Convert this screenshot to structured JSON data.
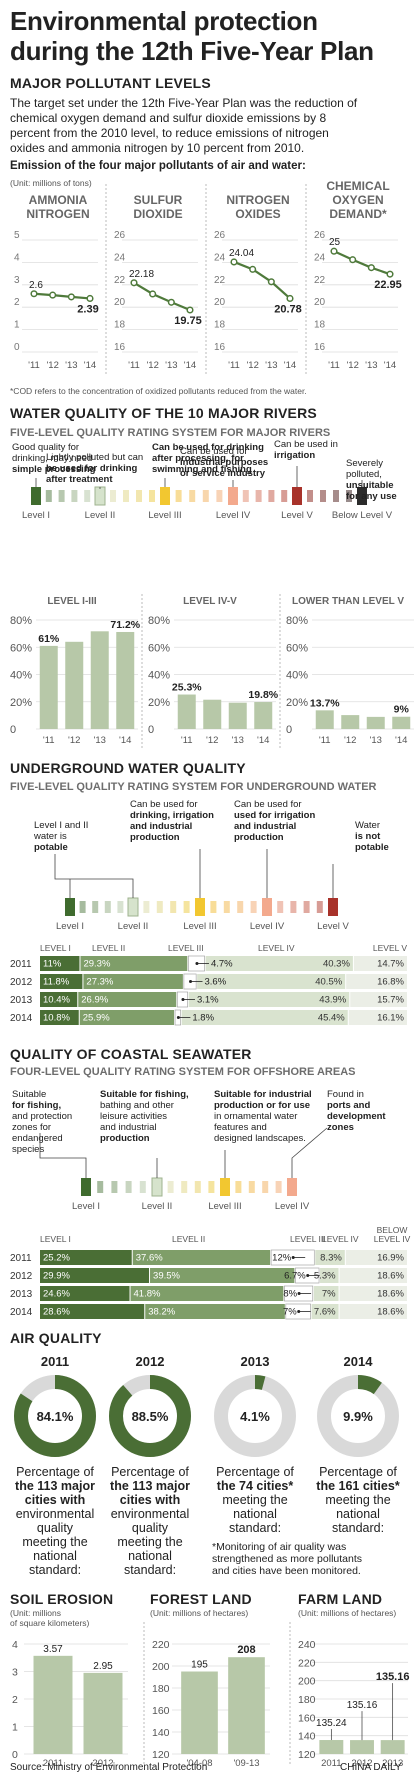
{
  "title_line1": "Environmental protection",
  "title_line2": "during the 12th Five-Year Plan",
  "pollutants": {
    "heading": "MAJOR POLLUTANT LEVELS",
    "intro": [
      "The target set under the 12th Five-Year Plan was the reduction of",
      "chemical oxygen demand and sulfur dioxide emissions by 8",
      "percent from the 2010 level, to reduce emissions of nitrogen",
      "oxides and ammonia nitrogen by 10 percent from 2010."
    ],
    "chart_title": "Emission of the four major pollutants of air and water:",
    "unit": "(Unit: millions of tons)",
    "footnote": "*COD refers to the concentration of oxidized pollutants reduced from the water."
  },
  "rivers": {
    "heading": "WATER QUALITY OF THE 10 MAJOR RIVERS",
    "scale_title": "FIVE-LEVEL QUALITY RATING SYSTEM FOR MAJOR RIVERS",
    "annotations": [
      {
        "lines": [
          "Good quality for",
          "drinking, may need",
          "simple processing"
        ]
      },
      {
        "lines": [
          "Lightly polluted but can",
          "be used for drinking",
          "after treatment"
        ]
      },
      {
        "lines": [
          "Can be used for drinking",
          "after processing, for",
          "swimming and fishing"
        ]
      },
      {
        "lines": [
          "Can be used for",
          "industrial purposes",
          "or service industry"
        ]
      },
      {
        "lines": [
          "Can be used in",
          "irrigation"
        ]
      },
      {
        "lines": [
          "Severely",
          "polluted,",
          "unsuitable",
          "for any use"
        ]
      }
    ],
    "levels": [
      "Level I",
      "Level II",
      "Level III",
      "Level IV",
      "Level V",
      "Below Level V"
    ]
  },
  "underground": {
    "heading": "UNDERGROUND WATER QUALITY",
    "scale_title": "FIVE-LEVEL QUALITY RATING SYSTEM FOR UNDERGROUND WATER",
    "annotations": [
      {
        "lines": [
          "Level I and II",
          "water is",
          "potable"
        ]
      },
      {
        "lines": [
          "Can be used for",
          "drinking, irrigation",
          "and industrial",
          "production"
        ]
      },
      {
        "lines": [
          "Can be used for",
          "used for irrigation",
          "and industrial",
          "production"
        ]
      },
      {
        "lines": [
          "Water",
          "is not",
          "potable"
        ]
      }
    ],
    "levels": [
      "Level I",
      "Level II",
      "Level III",
      "Level IV",
      "Level V"
    ]
  },
  "coastal": {
    "heading": "QUALITY OF COASTAL SEAWATER",
    "scale_title": "FOUR-LEVEL QUALITY RATING SYSTEM FOR OFFSHORE AREAS",
    "annotations": [
      {
        "lines": [
          "Suitable",
          "for fishing,",
          "and protection",
          "zones for",
          "endangered",
          "species"
        ]
      },
      {
        "lines": [
          "Suitable for fishing,",
          "bathing and other",
          "leisure activities",
          "and industrial",
          "production"
        ]
      },
      {
        "lines": [
          "Suitable for industrial",
          "production or for use",
          "in ornamental water",
          "features and",
          "designed landscapes."
        ]
      },
      {
        "lines": [
          "Found in",
          "ports and",
          "development",
          "zones"
        ]
      }
    ],
    "levels": [
      "Level I",
      "Level II",
      "Level III",
      "Level IV"
    ]
  },
  "air": {
    "heading": "AIR QUALITY",
    "captions": [
      [
        "Percentage of",
        "the 113 major",
        "cities with",
        "environmental",
        "quality",
        "meeting the",
        "national",
        "standard:"
      ],
      [
        "Percentage of",
        "the 113 major",
        "cities with",
        "environmental",
        "quality",
        "meeting the",
        "national",
        "standard:"
      ],
      [
        "Percentage of",
        "the 74 cities*",
        "meeting the",
        "national",
        "standard:"
      ],
      [
        "Percentage of",
        "the 161 cities*",
        "meeting the",
        "national",
        "standard:"
      ]
    ],
    "note": [
      "*Monitoring of air quality was",
      "strengthened as more pollutants",
      "and cities have been monitored."
    ]
  },
  "soil": {
    "heading": "SOIL EROSION",
    "unit": [
      "(Unit: millions",
      "of square kilometers)"
    ]
  },
  "forest": {
    "heading": "FOREST LAND",
    "unit": "(Unit: millions of hectares)"
  },
  "farm": {
    "heading": "FARM LAND",
    "unit": "(Unit: millions of hectares)"
  },
  "source": "Source: Ministry of Environmental Protection",
  "credit": "CHINA DAILY",
  "colors": {
    "dark": "#4a6e35",
    "mid": "#7f9e69",
    "light": "#b7c8a8",
    "pale": "#d9e3cf",
    "line": "#4f7a3b"
  },
  "chart_data": [
    {
      "type": "line",
      "title": "AMMONIA NITROGEN",
      "x": [
        "'11",
        "'12",
        "'13",
        "'14"
      ],
      "values": [
        2.6,
        2.54,
        2.46,
        2.39
      ],
      "labels": [
        "2.6",
        "",
        "",
        "2.39"
      ],
      "yticks": [
        0,
        1,
        2,
        3,
        4,
        5
      ],
      "ylim": [
        0,
        5
      ]
    },
    {
      "type": "line",
      "title": "SULFUR DIOXIDE",
      "x": [
        "'11",
        "'12",
        "'13",
        "'14"
      ],
      "values": [
        22.18,
        21.18,
        20.44,
        19.75
      ],
      "labels": [
        "22.18",
        "",
        "",
        "19.75"
      ],
      "yticks": [
        16,
        18,
        20,
        22,
        24,
        26
      ],
      "ylim": [
        16,
        26
      ]
    },
    {
      "type": "line",
      "title": "NITROGEN OXIDES",
      "x": [
        "'11",
        "'12",
        "'13",
        "'14"
      ],
      "values": [
        24.04,
        23.38,
        22.27,
        20.78
      ],
      "labels": [
        "24.04",
        "",
        "",
        "20.78"
      ],
      "yticks": [
        16,
        18,
        20,
        22,
        24,
        26
      ],
      "ylim": [
        16,
        26
      ]
    },
    {
      "type": "line",
      "title": "CHEMICAL OXYGEN DEMAND*",
      "x": [
        "'11",
        "'12",
        "'13",
        "'14"
      ],
      "values": [
        25,
        24.24,
        23.53,
        22.95
      ],
      "labels": [
        "25",
        "",
        "",
        "22.95"
      ],
      "yticks": [
        16,
        18,
        20,
        22,
        24,
        26
      ],
      "ylim": [
        16,
        26
      ]
    },
    {
      "type": "bar",
      "title": "LEVEL I-III",
      "x": [
        "'11",
        "'12",
        "'13",
        "'14"
      ],
      "values": [
        61,
        64,
        71.7,
        71.2
      ],
      "labels": [
        "61%",
        "",
        "",
        "71.2%"
      ],
      "yticks": [
        "0",
        "20%",
        "40%",
        "60%",
        "80%"
      ],
      "ylim": [
        0,
        80
      ]
    },
    {
      "type": "bar",
      "title": "LEVEL IV-V",
      "x": [
        "'11",
        "'12",
        "'13",
        "'14"
      ],
      "values": [
        25.3,
        21.5,
        19.3,
        19.8
      ],
      "labels": [
        "25.3%",
        "",
        "",
        "19.8%"
      ],
      "yticks": [
        "0",
        "20%",
        "40%",
        "60%",
        "80%"
      ],
      "ylim": [
        0,
        80
      ]
    },
    {
      "type": "bar",
      "title": "LOWER THAN LEVEL V",
      "x": [
        "'11",
        "'12",
        "'13",
        "'14"
      ],
      "values": [
        13.7,
        10.2,
        8.9,
        9
      ],
      "labels": [
        "13.7%",
        "",
        "",
        "9%"
      ],
      "yticks": [
        "0",
        "20%",
        "40%",
        "60%",
        "80%"
      ],
      "ylim": [
        0,
        80
      ]
    },
    {
      "type": "stacked-bar",
      "name": "underground",
      "headers": [
        "LEVEL I",
        "LEVEL II",
        "LEVEL III",
        "LEVEL IV",
        "LEVEL V"
      ],
      "rows": [
        {
          "year": "2011",
          "values": [
            11,
            29.3,
            4.7,
            40.3,
            14.7
          ],
          "labels": [
            "11%",
            "29.3%",
            "4.7%",
            "40.3%",
            "14.7%"
          ]
        },
        {
          "year": "2012",
          "values": [
            11.8,
            27.3,
            3.6,
            40.5,
            16.8
          ],
          "labels": [
            "11.8%",
            "27.3%",
            "3.6%",
            "40.5%",
            "16.8%"
          ]
        },
        {
          "year": "2013",
          "values": [
            10.4,
            26.9,
            3.1,
            43.9,
            15.7
          ],
          "labels": [
            "10.4%",
            "26.9%",
            "3.1%",
            "43.9%",
            "15.7%"
          ]
        },
        {
          "year": "2014",
          "values": [
            10.8,
            25.9,
            1.8,
            45.4,
            16.1
          ],
          "labels": [
            "10.8%",
            "25.9%",
            "1.8%",
            "45.4%",
            "16.1%"
          ]
        }
      ]
    },
    {
      "type": "stacked-bar",
      "name": "coastal",
      "headers": [
        "LEVEL I",
        "LEVEL II",
        "LEVEL III",
        "LEVEL IV",
        "BELOW LEVEL IV"
      ],
      "rows": [
        {
          "year": "2011",
          "values": [
            25.2,
            37.6,
            12,
            8.3,
            16.9
          ],
          "labels": [
            "25.2%",
            "37.6%",
            "12%",
            "8.3%",
            "16.9%"
          ]
        },
        {
          "year": "2012",
          "values": [
            29.9,
            39.5,
            6.7,
            5.3,
            18.6
          ],
          "labels": [
            "29.9%",
            "39.5%",
            "6.7%",
            "5.3%",
            "18.6%"
          ]
        },
        {
          "year": "2013",
          "values": [
            24.6,
            41.8,
            8,
            7,
            18.6
          ],
          "labels": [
            "24.6%",
            "41.8%",
            "8%",
            "7%",
            "18.6%"
          ]
        },
        {
          "year": "2014",
          "values": [
            28.6,
            38.2,
            7,
            7.6,
            18.6
          ],
          "labels": [
            "28.6%",
            "38.2%",
            "7%",
            "7.6%",
            "18.6%"
          ]
        }
      ]
    },
    {
      "type": "pie",
      "name": "air",
      "items": [
        {
          "year": "2011",
          "value": 84.1,
          "label": "84.1%"
        },
        {
          "year": "2012",
          "value": 88.5,
          "label": "88.5%"
        },
        {
          "year": "2013",
          "value": 4.1,
          "label": "4.1%"
        },
        {
          "year": "2014",
          "value": 9.9,
          "label": "9.9%"
        }
      ]
    },
    {
      "type": "bar",
      "title": "SOIL EROSION",
      "x": [
        "2011",
        "2012"
      ],
      "values": [
        3.57,
        2.95
      ],
      "labels": [
        "3.57",
        "2.95"
      ],
      "yticks": [
        0,
        1,
        2,
        3,
        4
      ],
      "ylim": [
        0,
        4
      ]
    },
    {
      "type": "bar",
      "title": "FOREST LAND",
      "x": [
        "'04-08",
        "'09-13"
      ],
      "values": [
        195,
        208
      ],
      "labels": [
        "195",
        "208"
      ],
      "yticks": [
        120,
        140,
        160,
        180,
        200,
        220
      ],
      "ylim": [
        120,
        220
      ]
    },
    {
      "type": "bar",
      "title": "FARM LAND",
      "x": [
        "2011",
        "2012",
        "2013"
      ],
      "values": [
        135.24,
        135.16,
        135.16
      ],
      "labels": [
        "135.24",
        "135.16",
        "135.16"
      ],
      "yticks": [
        120,
        140,
        160,
        180,
        200,
        220,
        240
      ],
      "ylim": [
        120,
        240
      ]
    }
  ]
}
